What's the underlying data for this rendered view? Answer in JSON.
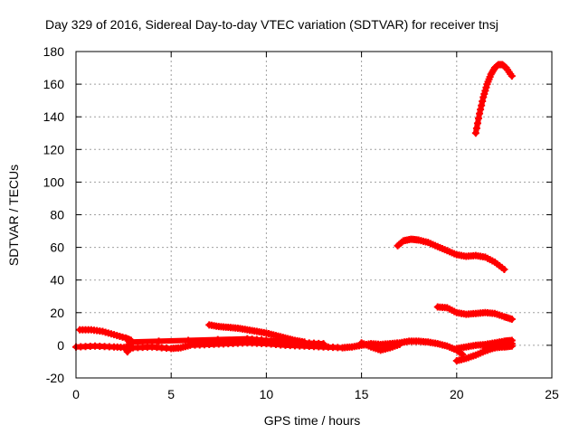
{
  "chart_data": {
    "type": "scatter",
    "title": "Day 329 of 2016, Sidereal Day-to-day VTEC variation (SDTVAR) for receiver tnsj",
    "xlabel": "GPS time / hours",
    "ylabel": "SDTVAR / TECUs",
    "xlim": [
      0,
      25
    ],
    "ylim": [
      -20,
      180
    ],
    "x_ticks": [
      "0",
      "5",
      "10",
      "15",
      "20",
      "25"
    ],
    "y_ticks": [
      "-20",
      "0",
      "20",
      "40",
      "60",
      "80",
      "100",
      "120",
      "140",
      "160",
      "180"
    ],
    "grid": true,
    "legend": "none",
    "marker": "plus",
    "color": "#ff0000",
    "series": [
      {
        "values": [
          [
            21.0,
            130
          ],
          [
            21.2,
            142
          ],
          [
            21.4,
            152
          ],
          [
            21.6,
            160
          ],
          [
            21.8,
            166
          ],
          [
            22.0,
            170
          ],
          [
            22.2,
            172
          ],
          [
            22.4,
            172
          ],
          [
            22.6,
            170
          ],
          [
            22.9,
            165
          ]
        ]
      },
      {
        "values": [
          [
            16.9,
            61
          ],
          [
            17.2,
            64
          ],
          [
            17.6,
            65
          ],
          [
            18.0,
            64.5
          ],
          [
            18.5,
            63
          ],
          [
            19.0,
            60.5
          ],
          [
            19.5,
            58
          ],
          [
            20.0,
            55.5
          ],
          [
            20.5,
            54.5
          ],
          [
            21.0,
            55
          ],
          [
            21.5,
            54
          ],
          [
            22.0,
            51
          ],
          [
            22.5,
            46.5
          ]
        ]
      },
      {
        "values": [
          [
            19.0,
            23.5
          ],
          [
            19.5,
            23
          ],
          [
            20.0,
            20
          ],
          [
            20.5,
            19
          ],
          [
            21.0,
            19.5
          ],
          [
            21.5,
            20
          ],
          [
            22.0,
            19.5
          ],
          [
            22.5,
            17.5
          ],
          [
            22.9,
            16
          ]
        ]
      },
      {
        "values": [
          [
            0.2,
            9.5
          ],
          [
            0.8,
            9.5
          ],
          [
            1.4,
            8.5
          ],
          [
            2.0,
            6.5
          ],
          [
            2.6,
            4.5
          ],
          [
            2.9,
            3
          ]
        ]
      },
      {
        "values": [
          [
            7.0,
            12.5
          ],
          [
            7.5,
            11.5
          ],
          [
            8.0,
            11
          ],
          [
            8.5,
            10.5
          ],
          [
            9.0,
            9.5
          ],
          [
            9.5,
            8.5
          ],
          [
            10.0,
            7.5
          ],
          [
            10.5,
            6
          ],
          [
            11.0,
            4.5
          ],
          [
            11.5,
            3
          ],
          [
            12.0,
            2
          ]
        ]
      },
      {
        "values": [
          [
            0.0,
            -1
          ],
          [
            1.0,
            -0.5
          ],
          [
            2.0,
            -1
          ],
          [
            2.7,
            -1.5
          ],
          [
            3.0,
            -1.5
          ],
          [
            4.0,
            -1
          ],
          [
            5.0,
            -2
          ],
          [
            5.5,
            -1.5
          ],
          [
            6.0,
            0
          ],
          [
            7.0,
            0.5
          ],
          [
            8.0,
            1
          ],
          [
            9.0,
            1.5
          ],
          [
            10.0,
            1
          ],
          [
            11.0,
            0
          ],
          [
            12.0,
            -0.5
          ],
          [
            13.0,
            -1
          ],
          [
            14.0,
            -1.5
          ],
          [
            14.5,
            -1
          ],
          [
            15.0,
            0
          ],
          [
            15.5,
            1
          ],
          [
            16.0,
            0.5
          ],
          [
            16.5,
            1
          ],
          [
            17.0,
            1.5
          ],
          [
            17.5,
            2.5
          ],
          [
            18.0,
            2.5
          ],
          [
            18.5,
            2
          ],
          [
            19.0,
            1
          ],
          [
            19.5,
            -0.5
          ],
          [
            20.0,
            -3
          ],
          [
            20.3,
            -5.5
          ]
        ]
      },
      {
        "values": [
          [
            2.7,
            -4
          ],
          [
            2.8,
            2
          ],
          [
            9.0,
            4
          ],
          [
            10.0,
            3
          ],
          [
            11.0,
            2.5
          ],
          [
            12.0,
            1.5
          ],
          [
            13.0,
            1
          ]
        ]
      },
      {
        "values": [
          [
            15.0,
            1.5
          ],
          [
            15.5,
            -1
          ],
          [
            16.0,
            -3
          ],
          [
            16.5,
            -1.5
          ],
          [
            17.0,
            0.5
          ]
        ]
      },
      {
        "values": [
          [
            20.0,
            -9.5
          ],
          [
            20.5,
            -8
          ],
          [
            21.0,
            -6
          ],
          [
            21.5,
            -3.5
          ],
          [
            22.0,
            -1.5
          ],
          [
            22.5,
            0
          ],
          [
            22.9,
            1
          ]
        ]
      },
      {
        "values": [
          [
            20.0,
            -2
          ],
          [
            20.5,
            -1
          ],
          [
            21.0,
            0
          ],
          [
            21.5,
            0.5
          ],
          [
            22.0,
            1.5
          ],
          [
            22.5,
            2.5
          ],
          [
            22.9,
            3
          ]
        ]
      },
      {
        "values": [
          [
            21.5,
            -2
          ],
          [
            22.0,
            -1.5
          ],
          [
            22.5,
            -1
          ],
          [
            22.9,
            -0.5
          ]
        ]
      }
    ]
  }
}
